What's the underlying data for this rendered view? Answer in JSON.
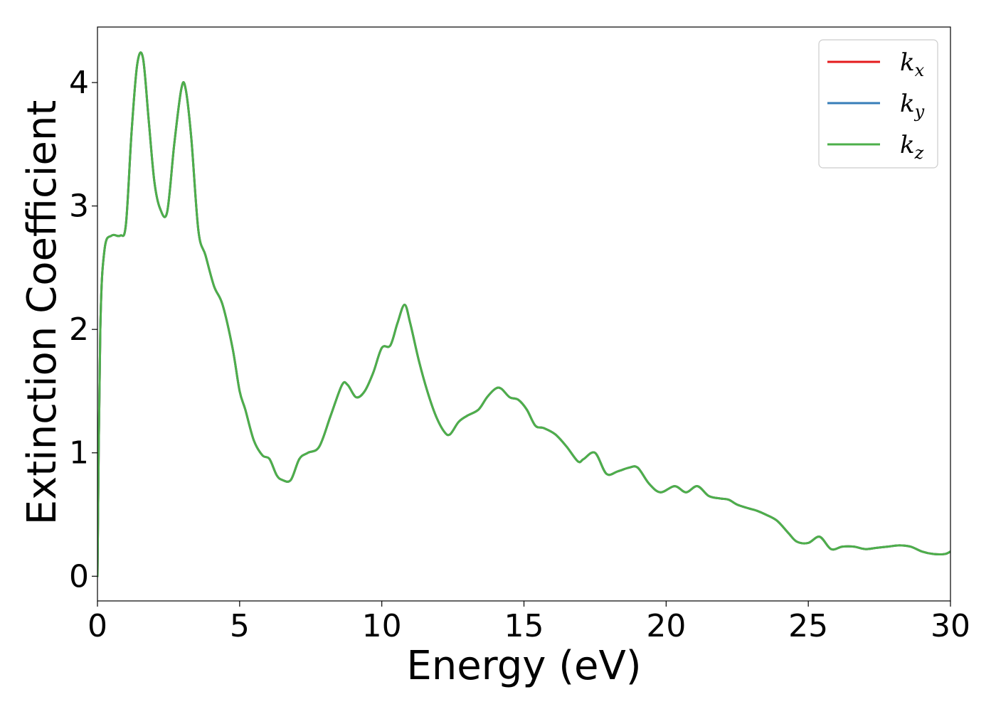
{
  "chart_data": {
    "type": "line",
    "title": "",
    "xlabel": "Energy (eV)",
    "ylabel": "Extinction Coefficient",
    "xlim": [
      0,
      30
    ],
    "ylim": [
      -0.2,
      4.45
    ],
    "xticks": [
      0,
      5,
      10,
      15,
      20,
      25,
      30
    ],
    "yticks": [
      0,
      1,
      2,
      3,
      4
    ],
    "grid": false,
    "legend_position": "top-right",
    "series": [
      {
        "name": "kx",
        "symbol": "k",
        "subscript": "x",
        "color": "#e41a1c",
        "x": [
          0.0,
          0.1,
          0.25,
          0.5,
          0.8,
          1.0,
          1.2,
          1.4,
          1.6,
          1.8,
          2.0,
          2.2,
          2.45,
          2.7,
          2.95,
          3.1,
          3.3,
          3.55,
          3.8,
          4.1,
          4.4,
          4.75,
          5.0,
          5.2,
          5.5,
          5.8,
          6.05,
          6.3,
          6.5,
          6.8,
          7.1,
          7.4,
          7.8,
          8.2,
          8.6,
          8.8,
          9.1,
          9.4,
          9.7,
          10.0,
          10.3,
          10.55,
          10.8,
          11.0,
          11.3,
          11.6,
          11.9,
          12.2,
          12.4,
          12.7,
          13.0,
          13.4,
          13.7,
          14.0,
          14.2,
          14.5,
          14.8,
          15.1,
          15.4,
          15.7,
          16.1,
          16.5,
          16.9,
          17.1,
          17.5,
          17.9,
          18.3,
          18.7,
          19.0,
          19.4,
          19.8,
          20.3,
          20.7,
          21.1,
          21.5,
          21.9,
          22.2,
          22.5,
          22.9,
          23.2,
          23.5,
          23.9,
          24.3,
          24.6,
          25.0,
          25.4,
          25.8,
          26.2,
          26.6,
          27.0,
          27.4,
          27.8,
          28.2,
          28.6,
          29.0,
          29.4,
          29.8,
          30.0
        ],
        "y": [
          0.0,
          2.0,
          2.65,
          2.76,
          2.76,
          2.85,
          3.6,
          4.15,
          4.2,
          3.7,
          3.2,
          2.98,
          2.95,
          3.5,
          3.95,
          3.95,
          3.55,
          2.8,
          2.6,
          2.35,
          2.2,
          1.85,
          1.5,
          1.35,
          1.1,
          0.98,
          0.95,
          0.82,
          0.78,
          0.78,
          0.95,
          1.0,
          1.05,
          1.3,
          1.55,
          1.55,
          1.45,
          1.5,
          1.65,
          1.85,
          1.87,
          2.05,
          2.2,
          2.05,
          1.75,
          1.5,
          1.3,
          1.17,
          1.15,
          1.25,
          1.3,
          1.35,
          1.45,
          1.52,
          1.52,
          1.45,
          1.43,
          1.35,
          1.22,
          1.2,
          1.15,
          1.05,
          0.93,
          0.95,
          1.0,
          0.83,
          0.85,
          0.88,
          0.88,
          0.75,
          0.68,
          0.73,
          0.68,
          0.73,
          0.65,
          0.63,
          0.62,
          0.58,
          0.55,
          0.53,
          0.5,
          0.45,
          0.35,
          0.28,
          0.27,
          0.32,
          0.22,
          0.24,
          0.24,
          0.22,
          0.23,
          0.24,
          0.25,
          0.24,
          0.2,
          0.18,
          0.18,
          0.2
        ]
      },
      {
        "name": "ky",
        "symbol": "k",
        "subscript": "y",
        "color": "#377eb8",
        "x": [
          0.0,
          0.1,
          0.25,
          0.5,
          0.8,
          1.0,
          1.2,
          1.4,
          1.6,
          1.8,
          2.0,
          2.2,
          2.45,
          2.7,
          2.95,
          3.1,
          3.3,
          3.55,
          3.8,
          4.1,
          4.4,
          4.75,
          5.0,
          5.2,
          5.5,
          5.8,
          6.05,
          6.3,
          6.5,
          6.8,
          7.1,
          7.4,
          7.8,
          8.2,
          8.6,
          8.8,
          9.1,
          9.4,
          9.7,
          10.0,
          10.3,
          10.55,
          10.8,
          11.0,
          11.3,
          11.6,
          11.9,
          12.2,
          12.4,
          12.7,
          13.0,
          13.4,
          13.7,
          14.0,
          14.2,
          14.5,
          14.8,
          15.1,
          15.4,
          15.7,
          16.1,
          16.5,
          16.9,
          17.1,
          17.5,
          17.9,
          18.3,
          18.7,
          19.0,
          19.4,
          19.8,
          20.3,
          20.7,
          21.1,
          21.5,
          21.9,
          22.2,
          22.5,
          22.9,
          23.2,
          23.5,
          23.9,
          24.3,
          24.6,
          25.0,
          25.4,
          25.8,
          26.2,
          26.6,
          27.0,
          27.4,
          27.8,
          28.2,
          28.6,
          29.0,
          29.4,
          29.8,
          30.0
        ],
        "y": [
          0.0,
          2.0,
          2.65,
          2.76,
          2.76,
          2.85,
          3.6,
          4.15,
          4.2,
          3.7,
          3.2,
          2.98,
          2.95,
          3.5,
          3.95,
          3.95,
          3.55,
          2.8,
          2.6,
          2.35,
          2.2,
          1.85,
          1.5,
          1.35,
          1.1,
          0.98,
          0.95,
          0.82,
          0.78,
          0.78,
          0.95,
          1.0,
          1.05,
          1.3,
          1.55,
          1.55,
          1.45,
          1.5,
          1.65,
          1.85,
          1.87,
          2.05,
          2.2,
          2.05,
          1.75,
          1.5,
          1.3,
          1.17,
          1.15,
          1.25,
          1.3,
          1.35,
          1.45,
          1.52,
          1.52,
          1.45,
          1.43,
          1.35,
          1.22,
          1.2,
          1.15,
          1.05,
          0.93,
          0.95,
          1.0,
          0.83,
          0.85,
          0.88,
          0.88,
          0.75,
          0.68,
          0.73,
          0.68,
          0.73,
          0.65,
          0.63,
          0.62,
          0.58,
          0.55,
          0.53,
          0.5,
          0.45,
          0.35,
          0.28,
          0.27,
          0.32,
          0.22,
          0.24,
          0.24,
          0.22,
          0.23,
          0.24,
          0.25,
          0.24,
          0.2,
          0.18,
          0.18,
          0.2
        ]
      },
      {
        "name": "kz",
        "symbol": "k",
        "subscript": "z",
        "color": "#4daf4a",
        "x": [
          0.0,
          0.1,
          0.25,
          0.5,
          0.8,
          1.0,
          1.2,
          1.4,
          1.6,
          1.8,
          2.0,
          2.2,
          2.45,
          2.7,
          2.95,
          3.1,
          3.3,
          3.55,
          3.8,
          4.1,
          4.4,
          4.75,
          5.0,
          5.2,
          5.5,
          5.8,
          6.05,
          6.3,
          6.5,
          6.8,
          7.1,
          7.4,
          7.8,
          8.2,
          8.6,
          8.8,
          9.1,
          9.4,
          9.7,
          10.0,
          10.3,
          10.55,
          10.8,
          11.0,
          11.3,
          11.6,
          11.9,
          12.2,
          12.4,
          12.7,
          13.0,
          13.4,
          13.7,
          14.0,
          14.2,
          14.5,
          14.8,
          15.1,
          15.4,
          15.7,
          16.1,
          16.5,
          16.9,
          17.1,
          17.5,
          17.9,
          18.3,
          18.7,
          19.0,
          19.4,
          19.8,
          20.3,
          20.7,
          21.1,
          21.5,
          21.9,
          22.2,
          22.5,
          22.9,
          23.2,
          23.5,
          23.9,
          24.3,
          24.6,
          25.0,
          25.4,
          25.8,
          26.2,
          26.6,
          27.0,
          27.4,
          27.8,
          28.2,
          28.6,
          29.0,
          29.4,
          29.8,
          30.0
        ],
        "y": [
          0.0,
          2.0,
          2.65,
          2.76,
          2.76,
          2.85,
          3.6,
          4.15,
          4.2,
          3.7,
          3.2,
          2.98,
          2.95,
          3.5,
          3.95,
          3.95,
          3.55,
          2.8,
          2.6,
          2.35,
          2.2,
          1.85,
          1.5,
          1.35,
          1.1,
          0.98,
          0.95,
          0.82,
          0.78,
          0.78,
          0.95,
          1.0,
          1.05,
          1.3,
          1.55,
          1.55,
          1.45,
          1.5,
          1.65,
          1.85,
          1.87,
          2.05,
          2.2,
          2.05,
          1.75,
          1.5,
          1.3,
          1.17,
          1.15,
          1.25,
          1.3,
          1.35,
          1.45,
          1.52,
          1.52,
          1.45,
          1.43,
          1.35,
          1.22,
          1.2,
          1.15,
          1.05,
          0.93,
          0.95,
          1.0,
          0.83,
          0.85,
          0.88,
          0.88,
          0.75,
          0.68,
          0.73,
          0.68,
          0.73,
          0.65,
          0.63,
          0.62,
          0.58,
          0.55,
          0.53,
          0.5,
          0.45,
          0.35,
          0.28,
          0.27,
          0.32,
          0.22,
          0.24,
          0.24,
          0.22,
          0.23,
          0.24,
          0.25,
          0.24,
          0.2,
          0.18,
          0.18,
          0.2
        ]
      }
    ]
  }
}
